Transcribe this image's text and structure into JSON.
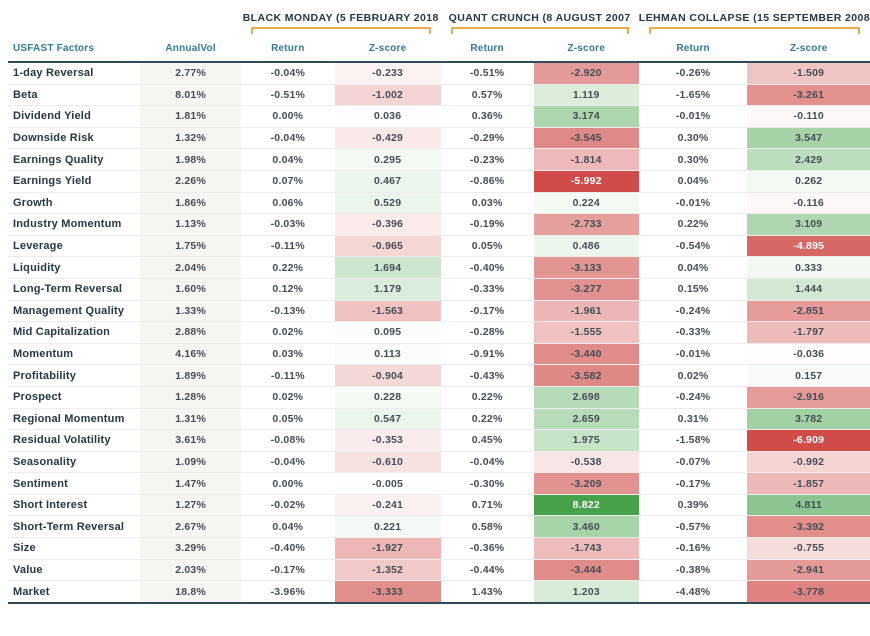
{
  "header": {
    "factor_col": "USFAST Factors",
    "vol_col": "AnnualVol",
    "return_col": "Return",
    "zscore_col": "Z-score",
    "groups": [
      {
        "title": "BLACK MONDAY (5 FEBRUARY 2018"
      },
      {
        "title": "QUANT CRUNCH (8 AUGUST 2007"
      },
      {
        "title": "LEHMAN COLLAPSE (15 SEPTEMBER 2008"
      }
    ]
  },
  "colors": {
    "bracket_gold": "#eaaa4c",
    "header_blue": "#34789c",
    "navy_text": "#253844",
    "dark_border": "#2f4a58",
    "vol_column_bg": "#f7f5f1",
    "negative_deep": "#cf4c49",
    "positive_deep": "#43a047"
  },
  "chart_data": {
    "type": "table",
    "subtype": "heatmap",
    "cell_coloring": "diverging red-green scale applied to Z-score cells (red negative, green positive)",
    "columns": [
      "USFAST Factors",
      "AnnualVol",
      "Black Monday Return",
      "Black Monday Z-score",
      "Quant Crunch Return",
      "Quant Crunch Z-score",
      "Lehman Collapse Return",
      "Lehman Collapse Z-score"
    ],
    "rows": [
      {
        "factor": "1-day Reversal",
        "annual_vol": "2.77%",
        "black_monday": {
          "return": "-0.04%",
          "z": "-0.233"
        },
        "quant_crunch": {
          "return": "-0.51%",
          "z": "-2.920"
        },
        "lehman_collapse": {
          "return": "-0.26%",
          "z": "-1.509"
        }
      },
      {
        "factor": "Beta",
        "annual_vol": "8.01%",
        "black_monday": {
          "return": "-0.51%",
          "z": "-1.002"
        },
        "quant_crunch": {
          "return": "0.57%",
          "z": "1.119"
        },
        "lehman_collapse": {
          "return": "-1.65%",
          "z": "-3.261"
        }
      },
      {
        "factor": "Dividend Yield",
        "annual_vol": "1.81%",
        "black_monday": {
          "return": "0.00%",
          "z": "0.036"
        },
        "quant_crunch": {
          "return": "0.36%",
          "z": "3.174"
        },
        "lehman_collapse": {
          "return": "-0.01%",
          "z": "-0.110"
        }
      },
      {
        "factor": "Downside Risk",
        "annual_vol": "1.32%",
        "black_monday": {
          "return": "-0.04%",
          "z": "-0.429"
        },
        "quant_crunch": {
          "return": "-0.29%",
          "z": "-3.545"
        },
        "lehman_collapse": {
          "return": "0.30%",
          "z": "3.547"
        }
      },
      {
        "factor": "Earnings Quality",
        "annual_vol": "1.98%",
        "black_monday": {
          "return": "0.04%",
          "z": "0.295"
        },
        "quant_crunch": {
          "return": "-0.23%",
          "z": "-1.814"
        },
        "lehman_collapse": {
          "return": "0.30%",
          "z": "2.429"
        }
      },
      {
        "factor": "Earnings Yield",
        "annual_vol": "2.26%",
        "black_monday": {
          "return": "0.07%",
          "z": "0.467"
        },
        "quant_crunch": {
          "return": "-0.86%",
          "z": "-5.992"
        },
        "lehman_collapse": {
          "return": "0.04%",
          "z": "0.262"
        }
      },
      {
        "factor": "Growth",
        "annual_vol": "1.86%",
        "black_monday": {
          "return": "0.06%",
          "z": "0.529"
        },
        "quant_crunch": {
          "return": "0.03%",
          "z": "0.224"
        },
        "lehman_collapse": {
          "return": "-0.01%",
          "z": "-0.116"
        }
      },
      {
        "factor": "Industry Momentum",
        "annual_vol": "1.13%",
        "black_monday": {
          "return": "-0.03%",
          "z": "-0.396"
        },
        "quant_crunch": {
          "return": "-0.19%",
          "z": "-2.733"
        },
        "lehman_collapse": {
          "return": "0.22%",
          "z": "3.109"
        }
      },
      {
        "factor": "Leverage",
        "annual_vol": "1.75%",
        "black_monday": {
          "return": "-0.11%",
          "z": "-0.965"
        },
        "quant_crunch": {
          "return": "0.05%",
          "z": "0.486"
        },
        "lehman_collapse": {
          "return": "-0.54%",
          "z": "-4.895"
        }
      },
      {
        "factor": "Liquidity",
        "annual_vol": "2.04%",
        "black_monday": {
          "return": "0.22%",
          "z": "1.694"
        },
        "quant_crunch": {
          "return": "-0.40%",
          "z": "-3.133"
        },
        "lehman_collapse": {
          "return": "0.04%",
          "z": "0.333"
        }
      },
      {
        "factor": "Long-Term Reversal",
        "annual_vol": "1.60%",
        "black_monday": {
          "return": "0.12%",
          "z": "1.179"
        },
        "quant_crunch": {
          "return": "-0.33%",
          "z": "-3.277"
        },
        "lehman_collapse": {
          "return": "0.15%",
          "z": "1.444"
        }
      },
      {
        "factor": "Management Quality",
        "annual_vol": "1.33%",
        "black_monday": {
          "return": "-0.13%",
          "z": "-1.563"
        },
        "quant_crunch": {
          "return": "-0.17%",
          "z": "-1.961"
        },
        "lehman_collapse": {
          "return": "-0.24%",
          "z": "-2.851"
        }
      },
      {
        "factor": "Mid Capitalization",
        "annual_vol": "2.88%",
        "black_monday": {
          "return": "0.02%",
          "z": "0.095"
        },
        "quant_crunch": {
          "return": "-0.28%",
          "z": "-1.555"
        },
        "lehman_collapse": {
          "return": "-0.33%",
          "z": "-1.797"
        }
      },
      {
        "factor": "Momentum",
        "annual_vol": "4.16%",
        "black_monday": {
          "return": "0.03%",
          "z": "0.113"
        },
        "quant_crunch": {
          "return": "-0.91%",
          "z": "-3.440"
        },
        "lehman_collapse": {
          "return": "-0.01%",
          "z": "-0.036"
        }
      },
      {
        "factor": "Profitability",
        "annual_vol": "1.89%",
        "black_monday": {
          "return": "-0.11%",
          "z": "-0.904"
        },
        "quant_crunch": {
          "return": "-0.43%",
          "z": "-3.582"
        },
        "lehman_collapse": {
          "return": "0.02%",
          "z": "0.157"
        }
      },
      {
        "factor": "Prospect",
        "annual_vol": "1.28%",
        "black_monday": {
          "return": "0.02%",
          "z": "0.228"
        },
        "quant_crunch": {
          "return": "0.22%",
          "z": "2.698"
        },
        "lehman_collapse": {
          "return": "-0.24%",
          "z": "-2.916"
        }
      },
      {
        "factor": "Regional Momentum",
        "annual_vol": "1.31%",
        "black_monday": {
          "return": "0.05%",
          "z": "0.547"
        },
        "quant_crunch": {
          "return": "0.22%",
          "z": "2.659"
        },
        "lehman_collapse": {
          "return": "0.31%",
          "z": "3.782"
        }
      },
      {
        "factor": "Residual Volatility",
        "annual_vol": "3.61%",
        "black_monday": {
          "return": "-0.08%",
          "z": "-0.353"
        },
        "quant_crunch": {
          "return": "0.45%",
          "z": "1.975"
        },
        "lehman_collapse": {
          "return": "-1.58%",
          "z": "-6.909"
        }
      },
      {
        "factor": "Seasonality",
        "annual_vol": "1.09%",
        "black_monday": {
          "return": "-0.04%",
          "z": "-0.610"
        },
        "quant_crunch": {
          "return": "-0.04%",
          "z": "-0.538"
        },
        "lehman_collapse": {
          "return": "-0.07%",
          "z": "-0.992"
        }
      },
      {
        "factor": "Sentiment",
        "annual_vol": "1.47%",
        "black_monday": {
          "return": "0.00%",
          "z": "-0.005"
        },
        "quant_crunch": {
          "return": "-0.30%",
          "z": "-3.209"
        },
        "lehman_collapse": {
          "return": "-0.17%",
          "z": "-1.857"
        }
      },
      {
        "factor": "Short Interest",
        "annual_vol": "1.27%",
        "black_monday": {
          "return": "-0.02%",
          "z": "-0.241"
        },
        "quant_crunch": {
          "return": "0.71%",
          "z": "8.822"
        },
        "lehman_collapse": {
          "return": "0.39%",
          "z": "4.811"
        }
      },
      {
        "factor": "Short-Term Reversal",
        "annual_vol": "2.67%",
        "black_monday": {
          "return": "0.04%",
          "z": "0.221"
        },
        "quant_crunch": {
          "return": "0.58%",
          "z": "3.460"
        },
        "lehman_collapse": {
          "return": "-0.57%",
          "z": "-3.392"
        }
      },
      {
        "factor": "Size",
        "annual_vol": "3.29%",
        "black_monday": {
          "return": "-0.40%",
          "z": "-1.927"
        },
        "quant_crunch": {
          "return": "-0.36%",
          "z": "-1.743"
        },
        "lehman_collapse": {
          "return": "-0.16%",
          "z": "-0.755"
        }
      },
      {
        "factor": "Value",
        "annual_vol": "2.03%",
        "black_monday": {
          "return": "-0.17%",
          "z": "-1.352"
        },
        "quant_crunch": {
          "return": "-0.44%",
          "z": "-3.444"
        },
        "lehman_collapse": {
          "return": "-0.38%",
          "z": "-2.941"
        }
      },
      {
        "factor": "Market",
        "annual_vol": "18.8%",
        "black_monday": {
          "return": "-3.96%",
          "z": "-3.333"
        },
        "quant_crunch": {
          "return": "1.43%",
          "z": "1.203"
        },
        "lehman_collapse": {
          "return": "-4.48%",
          "z": "-3.778"
        }
      }
    ]
  }
}
